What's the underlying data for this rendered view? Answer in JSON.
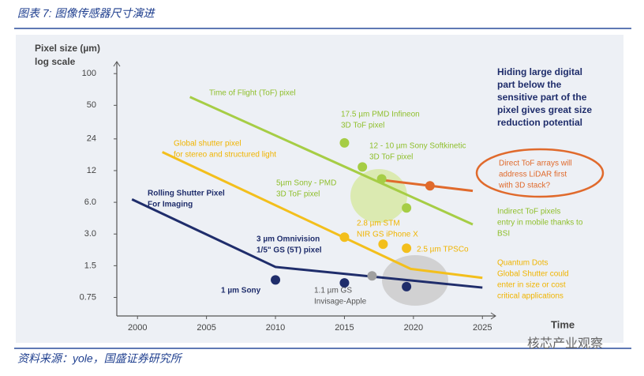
{
  "header": {
    "title": "图表 7:  图像传感器尺寸演进"
  },
  "footer": {
    "source": "资料来源：yole，国盛证券研究所",
    "watermark": "核芯产业观察"
  },
  "chart_data": {
    "type": "line",
    "log_y": true,
    "y_label": [
      "Pixel size (µm)",
      "log scale"
    ],
    "x_label": "Time",
    "xlim": [
      1998.5,
      2025.5
    ],
    "xticks": [
      2000,
      2005,
      2010,
      2015,
      2020,
      2025
    ],
    "ylim": [
      0.5,
      130
    ],
    "yticks": [
      100,
      50,
      24,
      12,
      {
        "value": 6,
        "label": "6.0"
      },
      {
        "value": 3,
        "label": "3.0"
      },
      1.5,
      0.75
    ],
    "series": [
      {
        "color": "#a6cd45",
        "x": [
          2003.8,
          2024.3
        ],
        "values": [
          60,
          3.7
        ]
      },
      {
        "color": "#f3bf1c",
        "x": [
          2001.8,
          2019.8,
          2025
        ],
        "values": [
          18,
          1.4,
          1.15
        ]
      },
      {
        "color": "#1f2d6b",
        "x": [
          1999.6,
          2010,
          2025
        ],
        "values": [
          6.4,
          1.46,
          0.93
        ]
      },
      {
        "color": "#e06a2c",
        "x": [
          2017.9,
          2024.3
        ],
        "values": [
          9.7,
          7.7
        ]
      }
    ],
    "markers": {
      "x": [
        2015,
        2016.3,
        2017.7,
        2019.5,
        2021.2,
        2015,
        2017.8,
        2019.5,
        2010,
        2015,
        2017,
        2019.5
      ],
      "values": [
        22,
        13,
        10,
        5.3,
        8.6,
        2.8,
        2.4,
        2.2,
        1.1,
        1.03,
        1.2,
        0.95
      ],
      "colors": [
        "#a6cd45",
        "#a6cd45",
        "#a6cd45",
        "#a6cd45",
        "#e06a2c",
        "#f3bf1c",
        "#f3bf1c",
        "#f3bf1c",
        "#1f2d6b",
        "#1f2d6b",
        "#a0a0a0",
        "#1f2d6b"
      ]
    },
    "annotations": [
      {
        "lines": [
          "Time of Flight (ToF) pixel"
        ],
        "color": "#8fbf2c"
      },
      {
        "lines": [
          "17.5 µm PMD Infineon",
          "3D ToF pixel"
        ],
        "color": "#8fbf2c"
      },
      {
        "lines": [
          "12 - 10 µm Sony Softkinetic",
          "3D ToF pixel"
        ],
        "color": "#8fbf2c"
      },
      {
        "lines": [
          "Global shutter pixel",
          "for stereo and structured light"
        ],
        "color": "#f0b400"
      },
      {
        "lines": [
          "5µm Sony - PMD",
          "3D ToF pixel"
        ],
        "color": "#8fbf2c"
      },
      {
        "lines": [
          "Rolling Shutter Pixel",
          "For Imaging"
        ],
        "color": "#1f2d6b"
      },
      {
        "lines": [
          "2.8 µm STM",
          "NIR GS iPhone X"
        ],
        "color": "#f0b400"
      },
      {
        "lines": [
          "3 µm Omnivision",
          "1/5\" GS (5T) pixel"
        ],
        "color": "#1f2d6b"
      },
      {
        "lines": [
          "2.5 µm TPSCo"
        ],
        "color": "#f0b400"
      },
      {
        "lines": [
          "1 µm Sony"
        ],
        "color": "#1f2d6b"
      },
      {
        "lines": [
          "1.1 µm GS",
          "Invisage-Apple"
        ],
        "color": "#555555"
      },
      {
        "lines": [
          "Hiding large digital",
          "part below the",
          "sensitive part of the",
          "pixel gives great size",
          "reduction potential"
        ],
        "color": "#1f2d6b"
      },
      {
        "lines": [
          "Direct ToF arrays will",
          "address LiDAR first",
          "with 3D stack?"
        ],
        "color": "#e06a2c"
      },
      {
        "lines": [
          "Indirect ToF pixels",
          "entry in mobile thanks to",
          "BSI"
        ],
        "color": "#8fbf2c"
      },
      {
        "lines": [
          "Quantum Dots",
          "Global Shutter could",
          "enter in size or cost",
          "critical applications"
        ],
        "color": "#f0b400"
      }
    ]
  }
}
